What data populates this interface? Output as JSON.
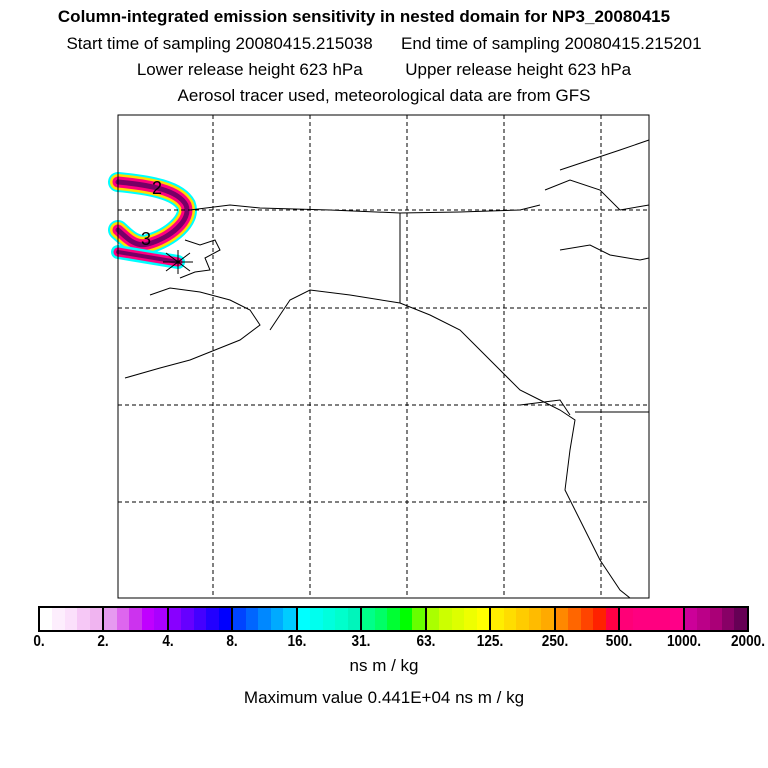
{
  "header": {
    "title": "Column-integrated emission sensitivity in nested domain for NP3_20080415",
    "start_time": "Start time of sampling 20080415.215038",
    "end_time": "End time of sampling 20080415.215201",
    "lower_height": "Lower release height  623 hPa",
    "upper_height": "Upper release height  623 hPa",
    "tracer_info": "Aerosol tracer used, meteorological data are from GFS"
  },
  "chart_data": {
    "type": "heatmap",
    "title": "Column-integrated emission sensitivity in nested domain for NP3_20080415",
    "colorbar": {
      "tick_labels": [
        "0.",
        "2.",
        "4.",
        "8.",
        "16.",
        "31.",
        "63.",
        "125.",
        "250.",
        "500.",
        "1000.",
        "2000."
      ],
      "units": "ns m / kg",
      "colors": [
        [
          "#ffffff",
          "#fdeefd",
          "#fbe0fb",
          "#f6c8f6",
          "#f0b4f0"
        ],
        [
          "#e699f0",
          "#dd66ee",
          "#cc33ee",
          "#c000ff",
          "#aa00ff"
        ],
        [
          "#8800ff",
          "#6600ff",
          "#4400ff",
          "#2200ff",
          "#0000ff"
        ],
        [
          "#0044ff",
          "#0066ff",
          "#0088ff",
          "#00aaff",
          "#00ccff"
        ],
        [
          "#00ffff",
          "#00ffee",
          "#00ffdd",
          "#00ffcc",
          "#00f5bb"
        ],
        [
          "#00ff88",
          "#00ff66",
          "#00ff33",
          "#00ff00",
          "#66ff00"
        ],
        [
          "#aaff00",
          "#ccff00",
          "#ddff00",
          "#eeff00",
          "#ffff00"
        ],
        [
          "#ffee00",
          "#ffdd00",
          "#ffcc00",
          "#ffbb00",
          "#ffaa00"
        ],
        [
          "#ff8800",
          "#ff6600",
          "#ff4400",
          "#ff2200",
          "#ff0044"
        ],
        [
          "#ff0077",
          "#ff0080",
          "#ff0080",
          "#ff0080",
          "#ff0088"
        ],
        [
          "#cc0099",
          "#bb0088",
          "#aa0077",
          "#880066",
          "#660055"
        ]
      ]
    },
    "plume_labels": [
      "2",
      "3"
    ],
    "maximum_value": "Maximum value  0.441E+04 ns m / kg"
  }
}
